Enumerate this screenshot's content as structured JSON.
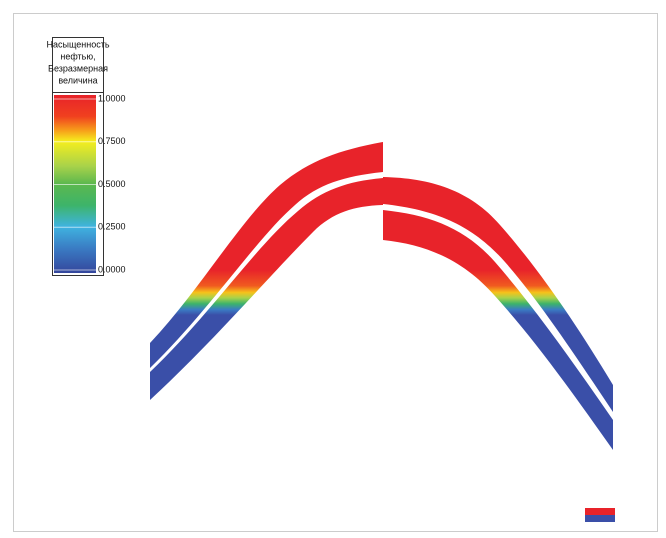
{
  "legend": {
    "title_lines": [
      "Насыщенность",
      "нефтью,",
      "Безразмерная",
      "величина"
    ],
    "clim": [
      0,
      1
    ],
    "ticks": [
      {
        "value": 1,
        "label": "1.0000"
      },
      {
        "value": 0.75,
        "label": "0.7500"
      },
      {
        "value": 0.5,
        "label": "0.5000"
      },
      {
        "value": 0.25,
        "label": "0.2500"
      },
      {
        "value": 0,
        "label": "0.0000"
      }
    ]
  }
}
